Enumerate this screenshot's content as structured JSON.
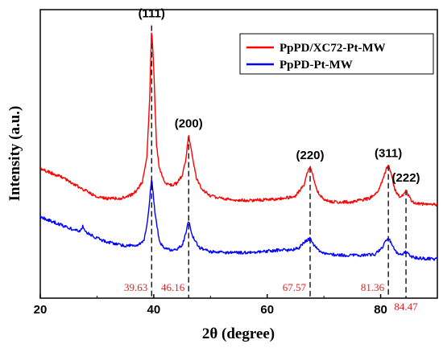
{
  "chart_data": {
    "type": "line",
    "xlabel": "2θ (degree)",
    "ylabel": "Intensity (a.u.)",
    "xlim": [
      20,
      90
    ],
    "x_ticks": [
      "20",
      "40",
      "60",
      "80"
    ],
    "legend_position": "top-right",
    "series": [
      {
        "name": "PpPD/XC72-Pt-MW",
        "color": "#ff0000",
        "x": [
          20,
          22,
          24,
          26,
          28,
          30,
          32,
          34,
          36,
          37,
          38,
          38.8,
          39.3,
          39.63,
          40,
          40.5,
          41,
          42,
          43,
          44,
          45,
          45.6,
          46.16,
          46.8,
          47.5,
          48.5,
          50,
          52,
          55,
          58,
          61,
          63,
          65,
          66.5,
          67.1,
          67.57,
          68.1,
          68.8,
          70,
          72,
          75,
          78,
          79.5,
          80.5,
          81,
          81.36,
          81.8,
          82.5,
          83.5,
          84.1,
          84.47,
          84.9,
          85.6,
          87,
          88.5,
          90
        ],
        "values": [
          1.48,
          1.43,
          1.38,
          1.3,
          1.23,
          1.16,
          1.14,
          1.14,
          1.18,
          1.23,
          1.33,
          1.62,
          2.3,
          3.12,
          2.6,
          1.75,
          1.48,
          1.32,
          1.29,
          1.31,
          1.4,
          1.56,
          1.86,
          1.62,
          1.38,
          1.24,
          1.17,
          1.14,
          1.12,
          1.12,
          1.13,
          1.14,
          1.17,
          1.3,
          1.45,
          1.5,
          1.4,
          1.23,
          1.12,
          1.1,
          1.1,
          1.14,
          1.22,
          1.38,
          1.48,
          1.52,
          1.44,
          1.24,
          1.14,
          1.2,
          1.24,
          1.17,
          1.1,
          1.08,
          1.08,
          1.07
        ]
      },
      {
        "name": "PpPD-Pt-MW",
        "color": "#0000ff",
        "x": [
          20,
          22,
          24,
          26,
          27,
          27.5,
          28,
          29,
          31,
          33,
          35,
          37,
          38.3,
          39,
          39.63,
          40.2,
          41,
          42,
          43,
          44,
          45,
          45.7,
          46.16,
          46.9,
          48,
          50,
          53,
          56,
          59,
          62,
          64,
          65.5,
          66.7,
          67.57,
          68.3,
          69.5,
          71,
          74,
          77,
          79,
          80.2,
          81,
          81.36,
          81.9,
          82.8,
          83.8,
          84.47,
          85.2,
          86.5,
          88,
          90
        ],
        "values": [
          0.93,
          0.88,
          0.83,
          0.78,
          0.76,
          0.82,
          0.76,
          0.72,
          0.66,
          0.62,
          0.6,
          0.6,
          0.66,
          0.93,
          1.38,
          0.98,
          0.65,
          0.57,
          0.55,
          0.56,
          0.6,
          0.75,
          0.89,
          0.7,
          0.58,
          0.53,
          0.52,
          0.52,
          0.53,
          0.55,
          0.55,
          0.57,
          0.65,
          0.68,
          0.6,
          0.52,
          0.5,
          0.49,
          0.49,
          0.5,
          0.57,
          0.66,
          0.69,
          0.62,
          0.52,
          0.5,
          0.53,
          0.48,
          0.46,
          0.45,
          0.45
        ]
      }
    ],
    "peaks": [
      {
        "label": "(111)",
        "position": "39.63",
        "x": 39.63
      },
      {
        "label": "(200)",
        "position": "46.16",
        "x": 46.16
      },
      {
        "label": "(220)",
        "position": "67.57",
        "x": 67.57
      },
      {
        "label": "(311)",
        "position": "81.36",
        "x": 81.36
      },
      {
        "label": "(222)",
        "position": "84.47",
        "x": 84.47
      }
    ]
  }
}
